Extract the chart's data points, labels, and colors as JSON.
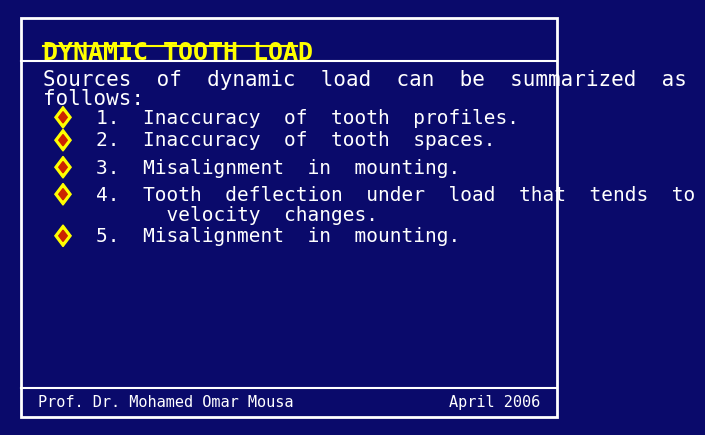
{
  "background_color": "#0a0a6b",
  "border_color": "#ffffff",
  "title": "DYNAMIC TOOTH LOAD",
  "title_color": "#ffff00",
  "title_fontsize": 18,
  "title_font": "monospace",
  "intro_line1": "Sources  of  dynamic  load  can  be  summarized  as",
  "intro_line2": "follows:",
  "intro_color": "#ffffff",
  "intro_fontsize": 15,
  "bullet_color_outer": "#ffff00",
  "bullet_color_inner": "#cc2200",
  "bullet_items": [
    "1.  Inaccuracy  of  tooth  profiles.",
    "2.  Inaccuracy  of  tooth  spaces.",
    "3.  Misalignment  in  mounting.",
    "4.  Tooth  deflection  under  load  that  tends  to",
    "      velocity  changes.",
    "5.  Misalignment  in  mounting."
  ],
  "bullet_has_diamond": [
    true,
    true,
    true,
    true,
    false,
    true
  ],
  "bullet_fontsize": 14,
  "bullet_font": "monospace",
  "text_color": "#ffffff",
  "footer_left": "Prof. Dr. Mohamed Omar Mousa",
  "footer_right": "April 2006",
  "footer_color": "#ffffff",
  "footer_fontsize": 11
}
